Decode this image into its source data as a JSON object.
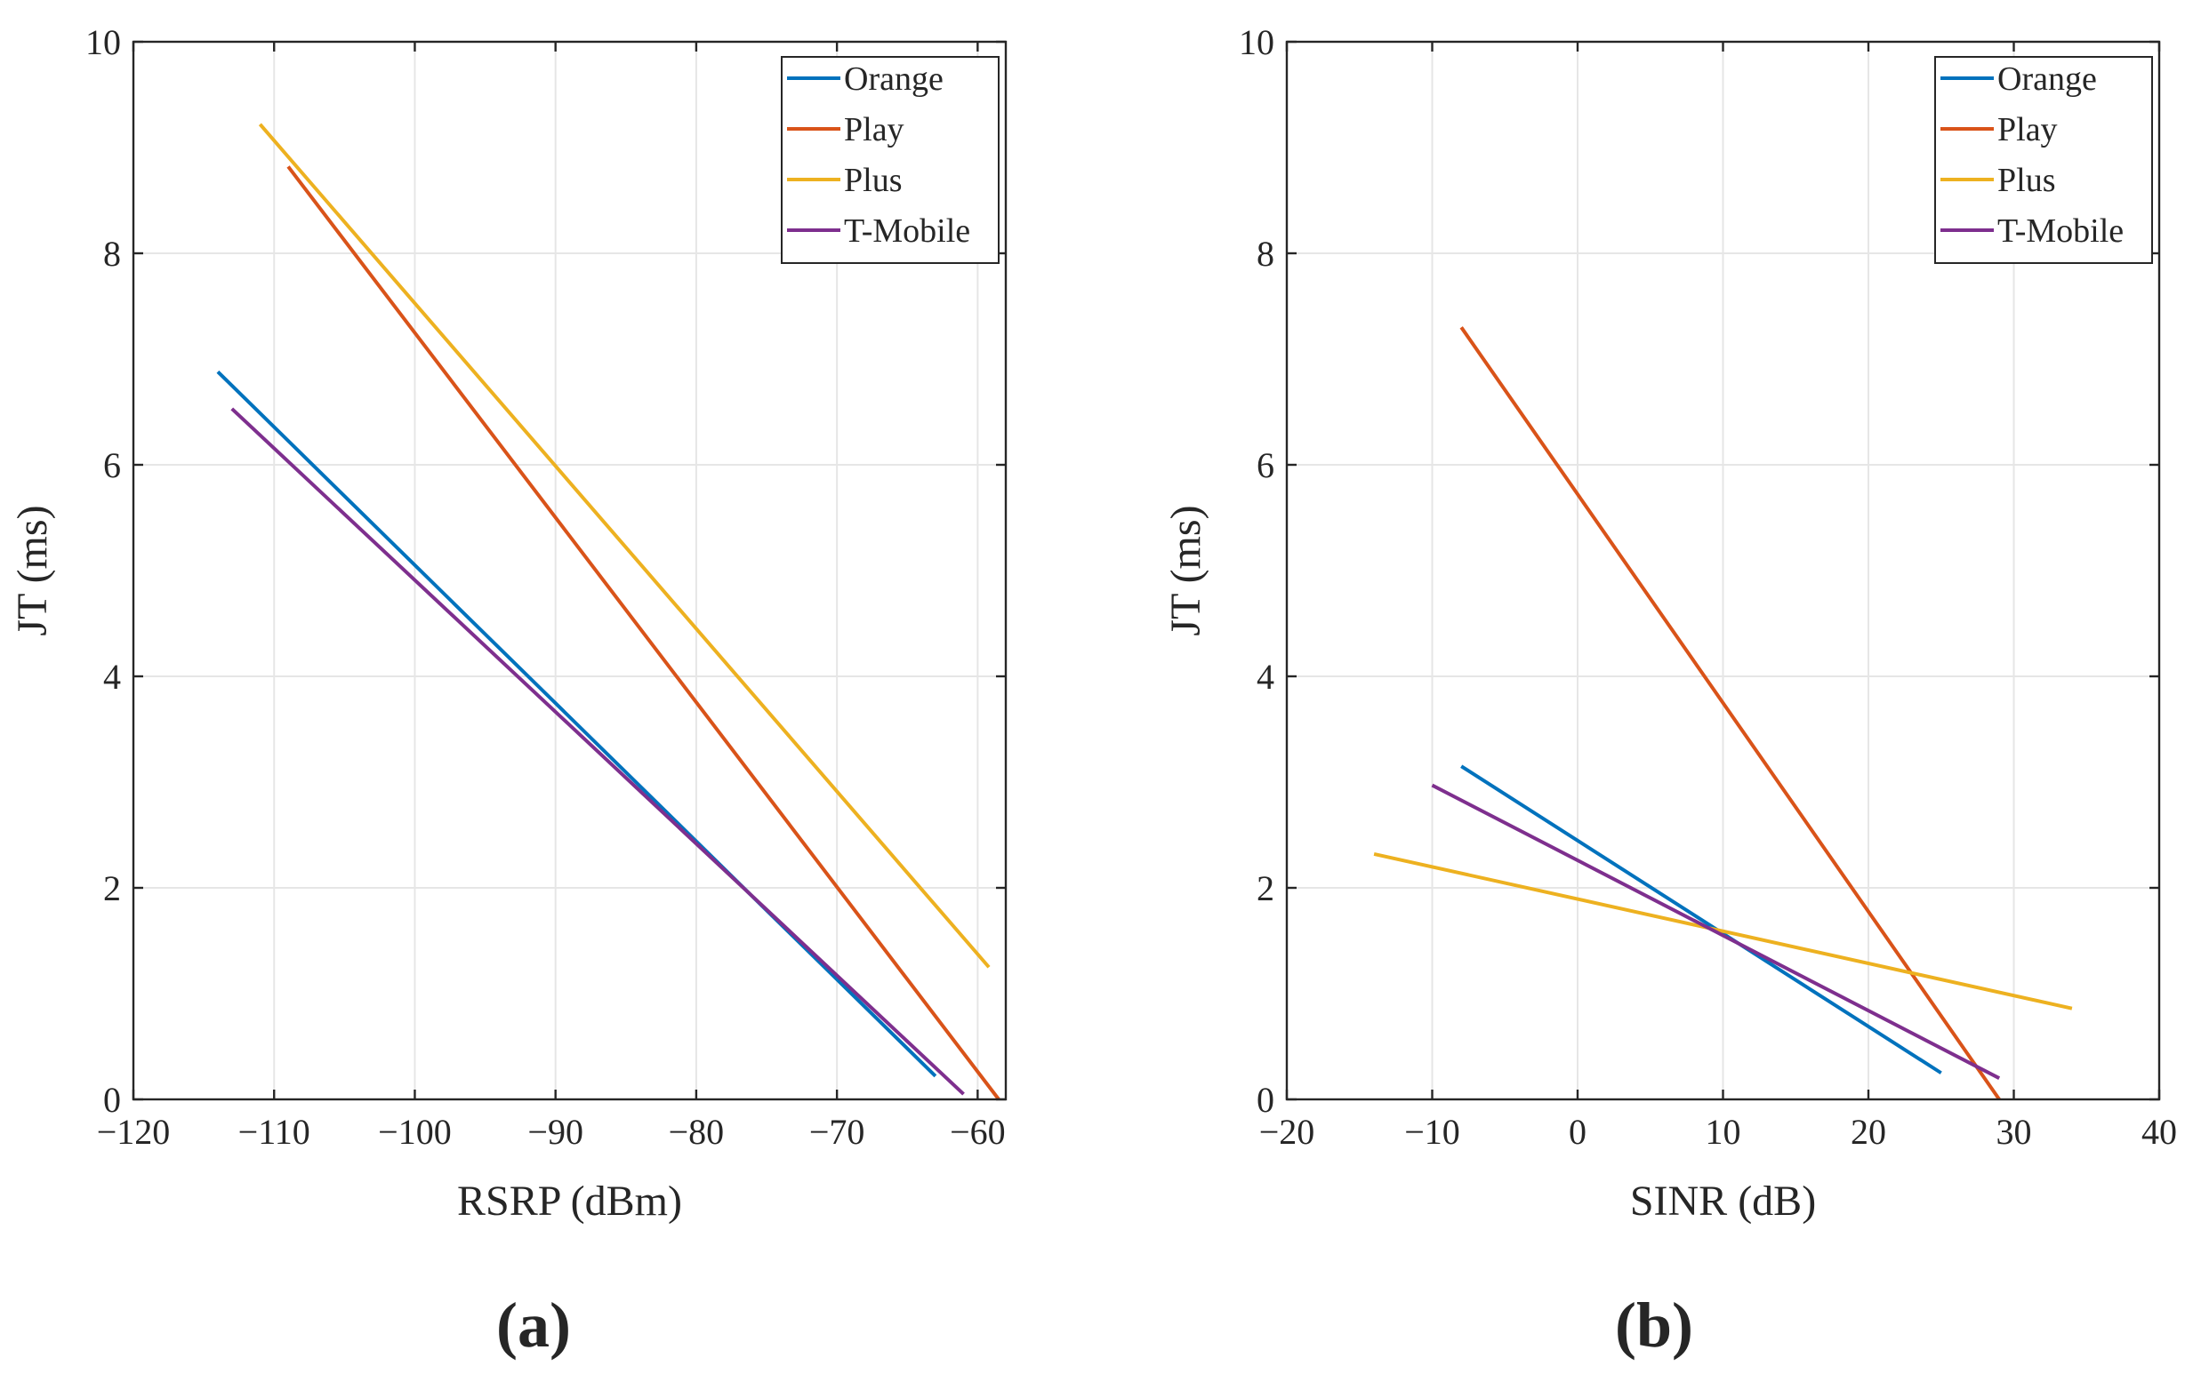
{
  "chart_data": [
    {
      "type": "line",
      "panel_label": "(a)",
      "xlabel": "RSRP  (dBm)",
      "ylabel": "JT  (ms)",
      "xlim": [
        -120,
        -58
      ],
      "ylim": [
        0,
        10
      ],
      "xticks": [
        -120,
        -110,
        -100,
        -90,
        -80,
        -70,
        -60
      ],
      "yticks": [
        0,
        2,
        4,
        6,
        8,
        10
      ],
      "grid": true,
      "legend_position": "top-right",
      "series": [
        {
          "name": "Orange",
          "color": "#0072BD",
          "x": [
            -114,
            -63
          ],
          "y": [
            6.88,
            0.22
          ]
        },
        {
          "name": "Play",
          "color": "#D95319",
          "x": [
            -109,
            -58.5
          ],
          "y": [
            8.82,
            0.0
          ]
        },
        {
          "name": "Plus",
          "color": "#EDB120",
          "x": [
            -111,
            -59.2
          ],
          "y": [
            9.22,
            1.25
          ]
        },
        {
          "name": "T-Mobile",
          "color": "#7E2F8E",
          "x": [
            -113,
            -61
          ],
          "y": [
            6.53,
            0.05
          ]
        }
      ]
    },
    {
      "type": "line",
      "panel_label": "(b)",
      "xlabel": "SINR  (dB)",
      "ylabel": "JT  (ms)",
      "xlim": [
        -20,
        40
      ],
      "ylim": [
        0,
        10
      ],
      "xticks": [
        -20,
        -10,
        0,
        10,
        20,
        30,
        40
      ],
      "yticks": [
        0,
        2,
        4,
        6,
        8,
        10
      ],
      "grid": true,
      "legend_position": "top-right",
      "series": [
        {
          "name": "Orange",
          "color": "#0072BD",
          "x": [
            -8,
            25
          ],
          "y": [
            3.15,
            0.25
          ]
        },
        {
          "name": "Play",
          "color": "#D95319",
          "x": [
            -8,
            29
          ],
          "y": [
            7.3,
            0.0
          ]
        },
        {
          "name": "Plus",
          "color": "#EDB120",
          "x": [
            -14,
            34
          ],
          "y": [
            2.32,
            0.86
          ]
        },
        {
          "name": "T-Mobile",
          "color": "#7E2F8E",
          "x": [
            -10,
            29
          ],
          "y": [
            2.97,
            0.2
          ]
        }
      ]
    }
  ]
}
